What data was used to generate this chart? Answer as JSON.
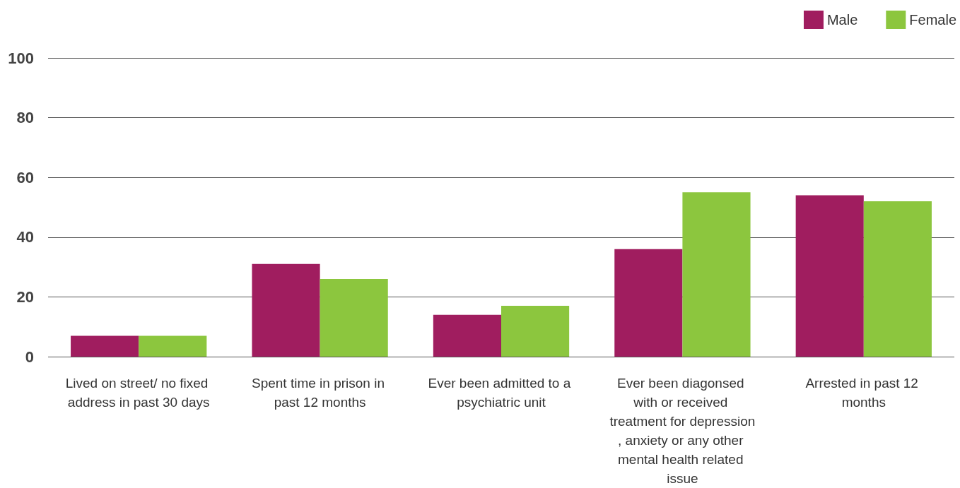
{
  "chart_data": {
    "type": "bar",
    "categories": [
      "Lived on street/ no fixed address in past 30 days",
      "Spent time in prison in past 12 months",
      "Ever been admitted to a psychiatric unit",
      "Ever been diagonsed with or received treatment for depression, anxiety or any other mental health related issue",
      "Arrested in past 12 months"
    ],
    "series": [
      {
        "name": "Male",
        "color": "#a01d5f",
        "values": [
          7,
          31,
          14,
          36,
          54
        ]
      },
      {
        "name": "Female",
        "color": "#8cc63e",
        "values": [
          7,
          26,
          17,
          55,
          52
        ]
      }
    ],
    "ylim": [
      0,
      100
    ],
    "yticks": [
      0,
      20,
      40,
      60,
      80,
      100
    ],
    "grid": "y",
    "legend": "top right"
  }
}
